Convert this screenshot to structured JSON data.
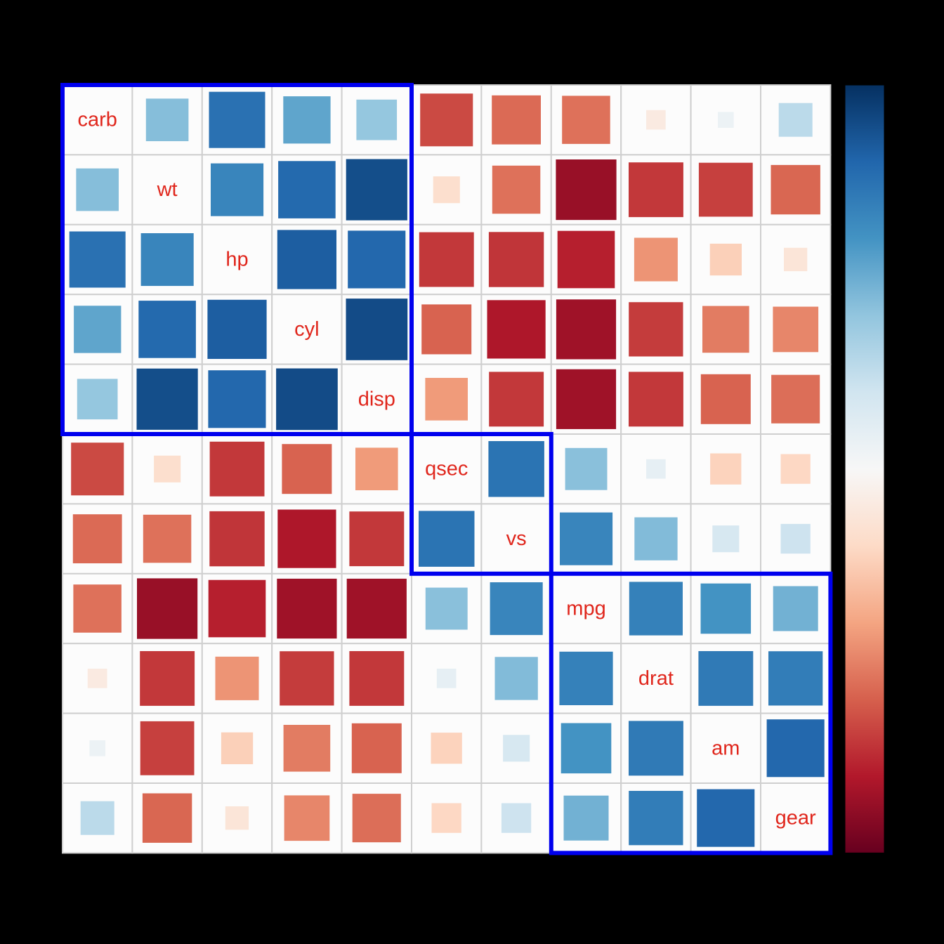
{
  "chart_data": {
    "type": "heatmap",
    "subtype": "correlation-matrix",
    "method": "square",
    "order": "hclust",
    "title": "",
    "variables": [
      "carb",
      "wt",
      "hp",
      "cyl",
      "disp",
      "qsec",
      "vs",
      "mpg",
      "drat",
      "am",
      "gear"
    ],
    "matrix": [
      [
        1.0,
        0.43,
        0.75,
        0.53,
        0.39,
        -0.66,
        -0.57,
        -0.55,
        -0.09,
        0.06,
        0.27
      ],
      [
        0.43,
        1.0,
        0.66,
        0.78,
        0.89,
        -0.17,
        -0.55,
        -0.87,
        -0.71,
        -0.69,
        -0.58
      ],
      [
        0.75,
        0.66,
        1.0,
        0.83,
        0.79,
        -0.71,
        -0.72,
        -0.78,
        -0.45,
        -0.24,
        -0.13
      ],
      [
        0.53,
        0.78,
        0.83,
        1.0,
        0.9,
        -0.59,
        -0.81,
        -0.85,
        -0.7,
        -0.52,
        -0.49
      ],
      [
        0.39,
        0.89,
        0.79,
        0.9,
        1.0,
        -0.43,
        -0.71,
        -0.85,
        -0.71,
        -0.59,
        -0.56
      ],
      [
        -0.66,
        -0.17,
        -0.71,
        -0.59,
        -0.43,
        1.0,
        0.74,
        0.42,
        0.09,
        -0.23,
        -0.21
      ],
      [
        -0.57,
        -0.55,
        -0.72,
        -0.81,
        -0.71,
        0.74,
        1.0,
        0.66,
        0.44,
        0.17,
        0.21
      ],
      [
        -0.55,
        -0.87,
        -0.78,
        -0.85,
        -0.85,
        0.42,
        0.66,
        1.0,
        0.68,
        0.6,
        0.48
      ],
      [
        -0.09,
        -0.71,
        -0.45,
        -0.7,
        -0.71,
        0.09,
        0.44,
        0.68,
        1.0,
        0.71,
        0.7
      ],
      [
        0.06,
        -0.69,
        -0.24,
        -0.52,
        -0.59,
        -0.23,
        0.17,
        0.6,
        0.71,
        1.0,
        0.79
      ],
      [
        0.27,
        -0.58,
        -0.13,
        -0.49,
        -0.56,
        -0.21,
        0.21,
        0.48,
        0.7,
        0.79,
        1.0
      ]
    ],
    "cluster_rects": [
      {
        "start": 0,
        "size": 5
      },
      {
        "start": 5,
        "size": 2
      },
      {
        "start": 7,
        "size": 4
      }
    ],
    "palette_red_to_blue": [
      "#67001F",
      "#B2182B",
      "#D6604D",
      "#F4A582",
      "#FDDBC7",
      "#F7F7F7",
      "#D1E5F0",
      "#92C5DE",
      "#4393C3",
      "#2166AC",
      "#053061"
    ],
    "colorbar": {
      "orientation": "vertical",
      "position": "right",
      "top_end": "positive-blue",
      "bottom_end": "negative-red"
    },
    "colors": {
      "background": "#000000",
      "cell_bg": "#FCFCFC",
      "grid": "#CFCFCF",
      "variable_label": "#E0261C",
      "cluster_rect": "#0000EE"
    },
    "legend_position": "right",
    "grid": true
  }
}
